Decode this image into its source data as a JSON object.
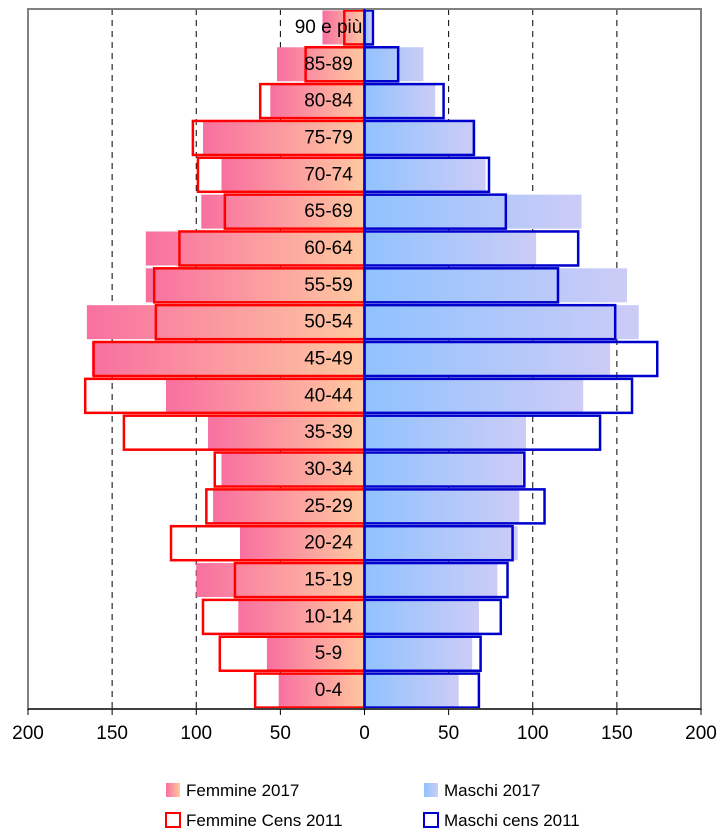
{
  "chart_data": {
    "type": "bar",
    "orientation": "horizontal-population-pyramid",
    "categories": [
      "0-4",
      "5-9",
      "10-14",
      "15-19",
      "20-24",
      "25-29",
      "30-34",
      "35-39",
      "40-44",
      "45-49",
      "50-54",
      "55-59",
      "60-64",
      "65-69",
      "70-74",
      "75-79",
      "80-84",
      "85-89",
      "90 e più"
    ],
    "series": [
      {
        "name": "Femmine 2017",
        "side": "left",
        "style": "filled",
        "color": "#f06a8a",
        "values": [
          51,
          58,
          75,
          100,
          74,
          90,
          85,
          93,
          118,
          162,
          165,
          130,
          130,
          97,
          85,
          96,
          56,
          52,
          25
        ]
      },
      {
        "name": "Maschi 2017",
        "side": "right",
        "style": "filled",
        "color": "#8ab4f8",
        "values": [
          56,
          64,
          68,
          79,
          91,
          92,
          94,
          96,
          130,
          146,
          163,
          156,
          102,
          129,
          72,
          66,
          42,
          35,
          4
        ]
      },
      {
        "name": "Femmine Cens 2011",
        "side": "left",
        "style": "outline",
        "color": "#ff0000",
        "values": [
          65,
          86,
          96,
          77,
          115,
          94,
          89,
          143,
          166,
          161,
          124,
          125,
          110,
          83,
          99,
          102,
          62,
          35,
          12
        ]
      },
      {
        "name": "Maschi cens 2011",
        "side": "right",
        "style": "outline",
        "color": "#0000cc",
        "values": [
          68,
          69,
          81,
          85,
          88,
          107,
          95,
          140,
          159,
          174,
          149,
          115,
          127,
          84,
          74,
          65,
          47,
          20,
          5
        ]
      }
    ],
    "xlim": [
      -200,
      200
    ],
    "xticks": [
      200,
      150,
      100,
      50,
      0,
      50,
      100,
      150,
      200
    ],
    "grid": "vertical-dashed",
    "legend_position": "bottom",
    "title": "",
    "xlabel": "",
    "ylabel": ""
  }
}
